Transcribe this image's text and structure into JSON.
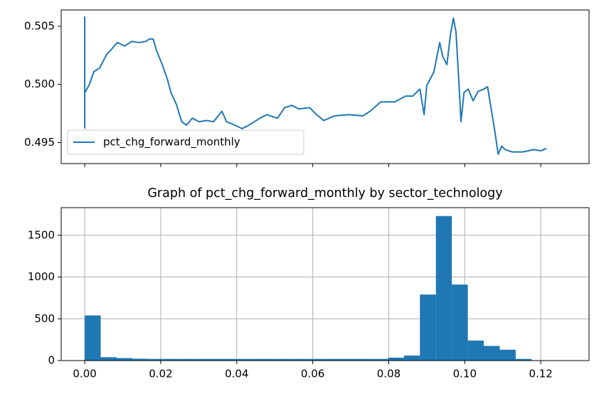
{
  "chart_data": [
    {
      "type": "line",
      "x": [
        0,
        0,
        0,
        0.0011,
        0.0024,
        0.0039,
        0.0058,
        0.0067,
        0.0086,
        0.0105,
        0.0124,
        0.0142,
        0.0161,
        0.017,
        0.018,
        0.0189,
        0.0204,
        0.0217,
        0.0227,
        0.0241,
        0.0255,
        0.0268,
        0.0283,
        0.0301,
        0.032,
        0.0339,
        0.0361,
        0.0373,
        0.0395,
        0.0414,
        0.0432,
        0.0461,
        0.0479,
        0.0507,
        0.0526,
        0.0545,
        0.0563,
        0.0592,
        0.061,
        0.0629,
        0.0657,
        0.0695,
        0.0732,
        0.0751,
        0.0779,
        0.0816,
        0.0844,
        0.0863,
        0.0882,
        0.0893,
        0.09,
        0.0919,
        0.0934,
        0.0942,
        0.0953,
        0.0962,
        0.097,
        0.0977,
        0.0985,
        0.099,
        0.0998,
        0.1009,
        0.1022,
        0.1035,
        0.105,
        0.106,
        0.1069,
        0.1078,
        0.1088,
        0.1097,
        0.1106,
        0.1125,
        0.1153,
        0.1181,
        0.12,
        0.1215
      ],
      "series": [
        {
          "name": "pct_chg_forward_monthly",
          "color": "#1f77b4",
          "values": [
            0.4962,
            0.5058,
            0.4993,
            0.4999,
            0.5011,
            0.5014,
            0.5026,
            0.5029,
            0.5036,
            0.5033,
            0.5037,
            0.5036,
            0.5037,
            0.5039,
            0.5039,
            0.5029,
            0.5017,
            0.5005,
            0.4993,
            0.4983,
            0.4968,
            0.4965,
            0.4971,
            0.4968,
            0.4969,
            0.4968,
            0.4977,
            0.4968,
            0.4965,
            0.4962,
            0.4965,
            0.4971,
            0.4974,
            0.4971,
            0.498,
            0.4982,
            0.4979,
            0.498,
            0.4974,
            0.4969,
            0.4973,
            0.4974,
            0.4973,
            0.4977,
            0.4985,
            0.4985,
            0.499,
            0.499,
            0.4996,
            0.4974,
            0.4999,
            0.5011,
            0.5036,
            0.5024,
            0.5017,
            0.5042,
            0.5057,
            0.5045,
            0.4999,
            0.4968,
            0.4993,
            0.4996,
            0.4986,
            0.4994,
            0.4996,
            0.4998,
            0.498,
            0.4962,
            0.494,
            0.4947,
            0.4944,
            0.4942,
            0.4942,
            0.4944,
            0.4943,
            0.4945
          ]
        }
      ],
      "xlim": [
        -0.0062,
        0.1327
      ],
      "xticks": [
        0,
        0.02,
        0.04,
        0.06,
        0.08,
        0.1,
        0.12
      ],
      "show_xtick_labels": false,
      "ylim": [
        0.4932,
        0.5064
      ],
      "yticks": [
        0.495,
        {
          "value": 0.5,
          "label": "0.500"
        },
        0.505
      ],
      "grid": false,
      "legend": "lower left"
    },
    {
      "type": "histogram",
      "title": "Graph of pct_chg_forward_monthly by sector_technology",
      "color": "#1f77b4",
      "bins": [
        0,
        0.0042,
        0.0084,
        0.0126,
        0.0168,
        0.021,
        0.0252,
        0.0294,
        0.0336,
        0.0378,
        0.042,
        0.0462,
        0.0504,
        0.0546,
        0.0588,
        0.063,
        0.0672,
        0.0714,
        0.0756,
        0.0798,
        0.084,
        0.0882,
        0.0924,
        0.0966,
        0.1008,
        0.105,
        0.1092,
        0.1134,
        0.1176,
        0.1218,
        0.126
      ],
      "values": [
        540,
        40,
        30,
        22,
        20,
        20,
        20,
        20,
        20,
        20,
        20,
        20,
        20,
        20,
        20,
        20,
        20,
        20,
        20,
        35,
        60,
        790,
        1730,
        910,
        240,
        175,
        130,
        20,
        2,
        1
      ],
      "xlim": [
        -0.0062,
        0.1327
      ],
      "xticks": [
        {
          "value": 0,
          "label": "0.00"
        },
        {
          "value": 0.02,
          "label": "0.02"
        },
        {
          "value": 0.04,
          "label": "0.04"
        },
        {
          "value": 0.06,
          "label": "0.06"
        },
        {
          "value": 0.08,
          "label": "0.08"
        },
        {
          "value": 0.1,
          "label": "0.10"
        },
        {
          "value": 0.12,
          "label": "0.12"
        }
      ],
      "show_xtick_labels": true,
      "ylim": [
        0,
        1830
      ],
      "yticks": [
        0,
        500,
        1000,
        1500
      ],
      "grid": true
    }
  ]
}
